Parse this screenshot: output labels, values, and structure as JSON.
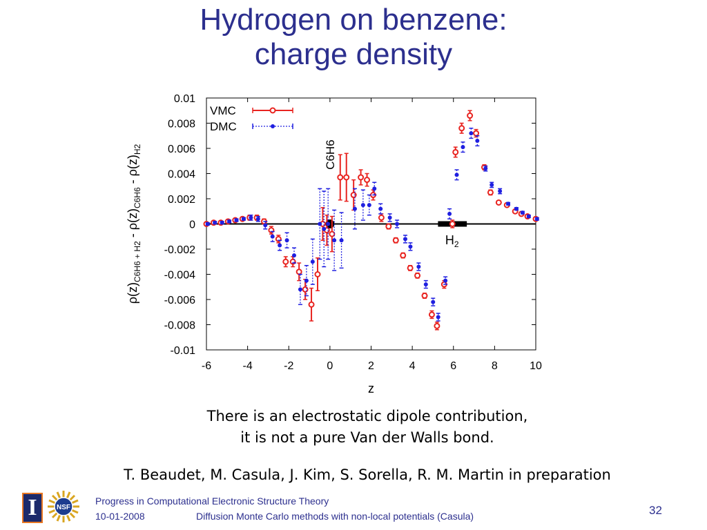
{
  "slide": {
    "title_line1": "Hydrogen on benzene:",
    "title_line2": "charge density",
    "note_line1": "There is an electrostatic dipole contribution,",
    "note_line2": "it is not a pure Van der Walls bond.",
    "citation": "T. Beaudet, M. Casula, J. Kim, S. Sorella, R. M. Martin in preparation"
  },
  "footer": {
    "title": "Progress in Computational Electronic Structure Theory",
    "date": "10-01-2008",
    "subtitle": "Diffusion Monte Carlo methods with non-local potentials  (Casula)",
    "page_number": "32",
    "logo_letter": "I",
    "logo_nsf_text": "NSF"
  },
  "chart_data": {
    "type": "scatter",
    "xlabel": "z",
    "ylabel_parts": [
      "ρ(z)",
      "C6H6 + H2",
      " - ρ(z)",
      "C6H6",
      " - ρ(z)",
      "H2"
    ],
    "xlim": [
      -6,
      10
    ],
    "ylim": [
      -0.01,
      0.01
    ],
    "x_ticks": [
      "-6",
      "-4",
      "-2",
      "0",
      "2",
      "4",
      "6",
      "8",
      "10"
    ],
    "y_ticks": [
      "0.01",
      "0.008",
      "0.006",
      "0.004",
      "0.002",
      "0",
      "-0.002",
      "-0.004",
      "-0.006",
      "-0.008",
      "-0.01"
    ],
    "annotations": {
      "benzene_label": "C6H6",
      "h2_label": "H",
      "h2_sub": "2"
    },
    "legend_position": "top-left",
    "colors": {
      "VMC": "#e8231f",
      "DMC": "#1f1fe0"
    },
    "series": [
      {
        "name": "VMC",
        "points": [
          {
            "x": -6.0,
            "y": 0.0,
            "e": 0.0001
          },
          {
            "x": -5.65,
            "y": 0.0001,
            "e": 0.0001
          },
          {
            "x": -5.3,
            "y": 0.0001,
            "e": 0.0001
          },
          {
            "x": -4.95,
            "y": 0.0002,
            "e": 0.0001
          },
          {
            "x": -4.6,
            "y": 0.0003,
            "e": 0.0001
          },
          {
            "x": -4.25,
            "y": 0.0004,
            "e": 0.0001
          },
          {
            "x": -3.9,
            "y": 0.0005,
            "e": 0.0002
          },
          {
            "x": -3.55,
            "y": 0.0005,
            "e": 0.0002
          },
          {
            "x": -3.2,
            "y": 0.0002,
            "e": 0.0002
          },
          {
            "x": -2.85,
            "y": -0.0005,
            "e": 0.0003
          },
          {
            "x": -2.5,
            "y": -0.0012,
            "e": 0.0003
          },
          {
            "x": -2.15,
            "y": -0.003,
            "e": 0.0004
          },
          {
            "x": -1.8,
            "y": -0.003,
            "e": 0.0004
          },
          {
            "x": -1.5,
            "y": -0.0038,
            "e": 0.0007
          },
          {
            "x": -1.2,
            "y": -0.0052,
            "e": 0.0008
          },
          {
            "x": -0.9,
            "y": -0.0064,
            "e": 0.0013
          },
          {
            "x": -0.6,
            "y": -0.004,
            "e": 0.0013
          },
          {
            "x": -0.35,
            "y": 0.0,
            "e": 0.0013
          },
          {
            "x": -0.15,
            "y": -0.0005,
            "e": 0.0012
          },
          {
            "x": 0.1,
            "y": -0.0008,
            "e": 0.0014
          },
          {
            "x": 0.5,
            "y": 0.0037,
            "e": 0.0018
          },
          {
            "x": 0.8,
            "y": 0.0037,
            "e": 0.0019
          },
          {
            "x": 1.15,
            "y": 0.0023,
            "e": 0.0012
          },
          {
            "x": 1.5,
            "y": 0.0037,
            "e": 0.0006
          },
          {
            "x": 1.8,
            "y": 0.0035,
            "e": 0.0005
          },
          {
            "x": 2.1,
            "y": 0.0023,
            "e": 0.0004
          },
          {
            "x": 2.5,
            "y": 0.0005,
            "e": 0.0003
          },
          {
            "x": 2.85,
            "y": -0.0002,
            "e": 0.0002
          },
          {
            "x": 3.2,
            "y": -0.0013,
            "e": 0.0002
          },
          {
            "x": 3.55,
            "y": -0.0025,
            "e": 0.0002
          },
          {
            "x": 3.9,
            "y": -0.0035,
            "e": 0.0002
          },
          {
            "x": 4.25,
            "y": -0.0041,
            "e": 0.0002
          },
          {
            "x": 4.6,
            "y": -0.0057,
            "e": 0.0002
          },
          {
            "x": 4.95,
            "y": -0.0072,
            "e": 0.0003
          },
          {
            "x": 5.2,
            "y": -0.0081,
            "e": 0.0003
          },
          {
            "x": 5.55,
            "y": -0.0048,
            "e": 0.0003
          },
          {
            "x": 5.95,
            "y": 0.0,
            "e": 0.0003
          },
          {
            "x": 6.1,
            "y": 0.0057,
            "e": 0.0004
          },
          {
            "x": 6.4,
            "y": 0.0076,
            "e": 0.0004
          },
          {
            "x": 6.8,
            "y": 0.0086,
            "e": 0.0004
          },
          {
            "x": 7.1,
            "y": 0.0072,
            "e": 0.0003
          },
          {
            "x": 7.5,
            "y": 0.0045,
            "e": 0.0002
          },
          {
            "x": 7.8,
            "y": 0.0025,
            "e": 0.0002
          },
          {
            "x": 8.2,
            "y": 0.0017,
            "e": 0.0001
          },
          {
            "x": 8.6,
            "y": 0.0015,
            "e": 0.0001
          },
          {
            "x": 9.0,
            "y": 0.001,
            "e": 0.0001
          },
          {
            "x": 9.3,
            "y": 0.0008,
            "e": 0.0001
          },
          {
            "x": 9.6,
            "y": 0.0006,
            "e": 0.0001
          },
          {
            "x": 10.0,
            "y": 0.0004,
            "e": 0.0001
          }
        ]
      },
      {
        "name": "DMC",
        "points": [
          {
            "x": -6.0,
            "y": 0.0,
            "e": 0.0001
          },
          {
            "x": -5.65,
            "y": 0.0001,
            "e": 0.0001
          },
          {
            "x": -5.3,
            "y": 0.0001,
            "e": 0.0001
          },
          {
            "x": -4.95,
            "y": 0.0002,
            "e": 0.0001
          },
          {
            "x": -4.6,
            "y": 0.0003,
            "e": 0.0001
          },
          {
            "x": -4.25,
            "y": 0.0004,
            "e": 0.0001
          },
          {
            "x": -3.9,
            "y": 0.0005,
            "e": 0.0002
          },
          {
            "x": -3.55,
            "y": 0.0004,
            "e": 0.0002
          },
          {
            "x": -3.2,
            "y": -0.0001,
            "e": 0.0003
          },
          {
            "x": -2.85,
            "y": -0.001,
            "e": 0.0004
          },
          {
            "x": -2.5,
            "y": -0.0017,
            "e": 0.0004
          },
          {
            "x": -2.15,
            "y": -0.0013,
            "e": 0.0006
          },
          {
            "x": -1.8,
            "y": -0.0025,
            "e": 0.0006
          },
          {
            "x": -1.5,
            "y": -0.0052,
            "e": 0.0012
          },
          {
            "x": -1.2,
            "y": -0.0045,
            "e": 0.0012
          },
          {
            "x": -0.9,
            "y": -0.003,
            "e": 0.0018
          },
          {
            "x": -0.55,
            "y": 0.0,
            "e": 0.0028
          },
          {
            "x": -0.35,
            "y": -0.0004,
            "e": 0.003
          },
          {
            "x": -0.15,
            "y": 0.0,
            "e": 0.0028
          },
          {
            "x": 0.15,
            "y": -0.0013,
            "e": 0.0024
          },
          {
            "x": 0.5,
            "y": -0.0013,
            "e": 0.0022
          },
          {
            "x": 1.15,
            "y": 0.0012,
            "e": 0.0016
          },
          {
            "x": 1.55,
            "y": 0.0015,
            "e": 0.0012
          },
          {
            "x": 1.85,
            "y": 0.0015,
            "e": 0.0008
          },
          {
            "x": 2.1,
            "y": 0.0028,
            "e": 0.0005
          },
          {
            "x": 2.4,
            "y": 0.0012,
            "e": 0.0004
          },
          {
            "x": 2.85,
            "y": 0.0005,
            "e": 0.0003
          },
          {
            "x": 3.2,
            "y": 0.0,
            "e": 0.0003
          },
          {
            "x": 3.6,
            "y": -0.0012,
            "e": 0.0003
          },
          {
            "x": 3.85,
            "y": -0.0018,
            "e": 0.0003
          },
          {
            "x": 4.25,
            "y": -0.0034,
            "e": 0.0003
          },
          {
            "x": 4.6,
            "y": -0.0048,
            "e": 0.0003
          },
          {
            "x": 4.95,
            "y": -0.0062,
            "e": 0.0003
          },
          {
            "x": 5.2,
            "y": -0.0074,
            "e": 0.0003
          },
          {
            "x": 5.55,
            "y": -0.0045,
            "e": 0.0003
          },
          {
            "x": 5.75,
            "y": 0.0008,
            "e": 0.0004
          },
          {
            "x": 6.1,
            "y": 0.0039,
            "e": 0.0004
          },
          {
            "x": 6.4,
            "y": 0.0061,
            "e": 0.0004
          },
          {
            "x": 6.8,
            "y": 0.0072,
            "e": 0.0004
          },
          {
            "x": 7.1,
            "y": 0.0066,
            "e": 0.0004
          },
          {
            "x": 7.5,
            "y": 0.0044,
            "e": 0.0002
          },
          {
            "x": 7.8,
            "y": 0.0031,
            "e": 0.0002
          },
          {
            "x": 8.2,
            "y": 0.0026,
            "e": 0.0002
          },
          {
            "x": 8.6,
            "y": 0.0016,
            "e": 0.0001
          },
          {
            "x": 9.0,
            "y": 0.0012,
            "e": 0.0001
          },
          {
            "x": 9.3,
            "y": 0.0009,
            "e": 0.0001
          },
          {
            "x": 9.6,
            "y": 0.0006,
            "e": 0.0001
          },
          {
            "x": 10.0,
            "y": 0.0004,
            "e": 0.0001
          }
        ]
      }
    ]
  }
}
